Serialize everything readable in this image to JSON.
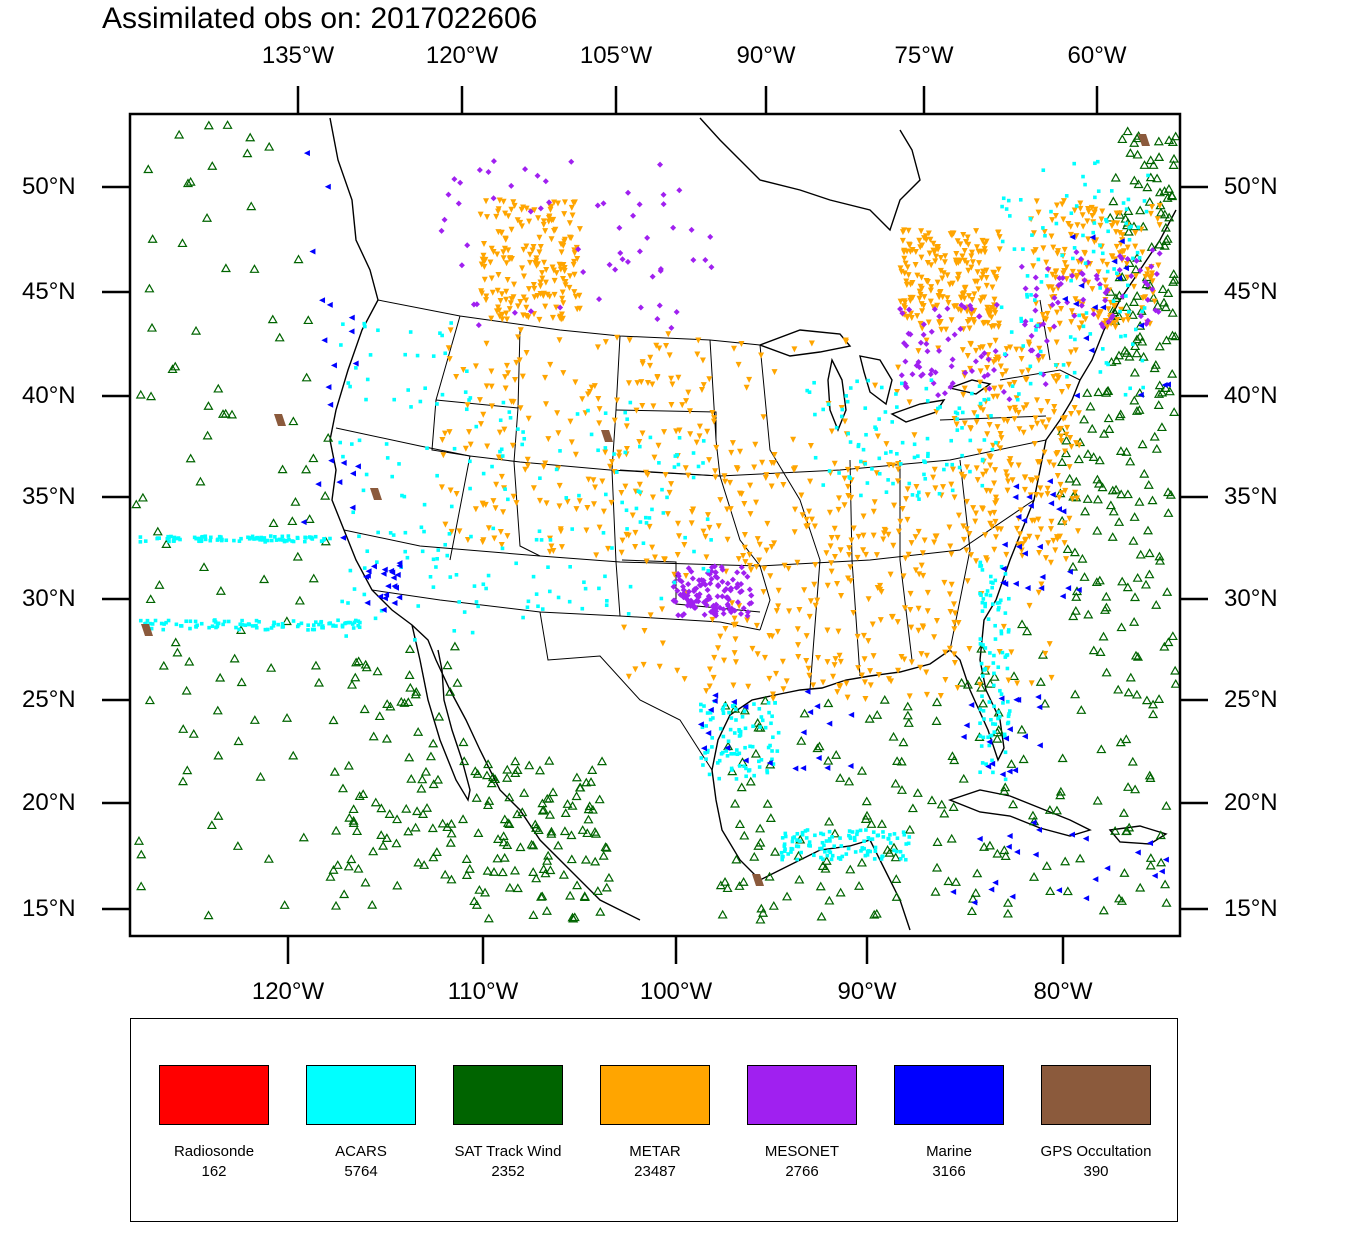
{
  "title": "Assimilated obs on: 2017022606",
  "axes": {
    "top_ticks": [
      "135°W",
      "120°W",
      "105°W",
      "90°W",
      "75°W",
      "60°W"
    ],
    "bottom_ticks": [
      "120°W",
      "110°W",
      "100°W",
      "90°W",
      "80°W"
    ],
    "left_ticks": [
      "50°N",
      "45°N",
      "40°N",
      "35°N",
      "30°N",
      "25°N",
      "20°N",
      "15°N"
    ],
    "right_ticks": [
      "50°N",
      "45°N",
      "40°N",
      "35°N",
      "30°N",
      "25°N",
      "20°N",
      "15°N"
    ]
  },
  "legend": [
    {
      "name": "Radiosonde",
      "count": "162",
      "color": "#ff0000",
      "marker": "none"
    },
    {
      "name": "ACARS",
      "count": "5764",
      "color": "#00ffff",
      "marker": "dot"
    },
    {
      "name": "SAT Track Wind",
      "count": "2352",
      "color": "#006400",
      "marker": "triangle-up"
    },
    {
      "name": "METAR",
      "count": "23487",
      "color": "#ffa500",
      "marker": "triangle-down"
    },
    {
      "name": "MESONET",
      "count": "2766",
      "color": "#a020f0",
      "marker": "diamond"
    },
    {
      "name": "Marine",
      "count": "3166",
      "color": "#0000ff",
      "marker": "triangle-left"
    },
    {
      "name": "GPS Occultation",
      "count": "390",
      "color": "#8b5a3c",
      "marker": "parallelogram"
    }
  ],
  "map_colors": {
    "background": "#ffffff",
    "coastline": "#000000",
    "frame": "#000000"
  }
}
